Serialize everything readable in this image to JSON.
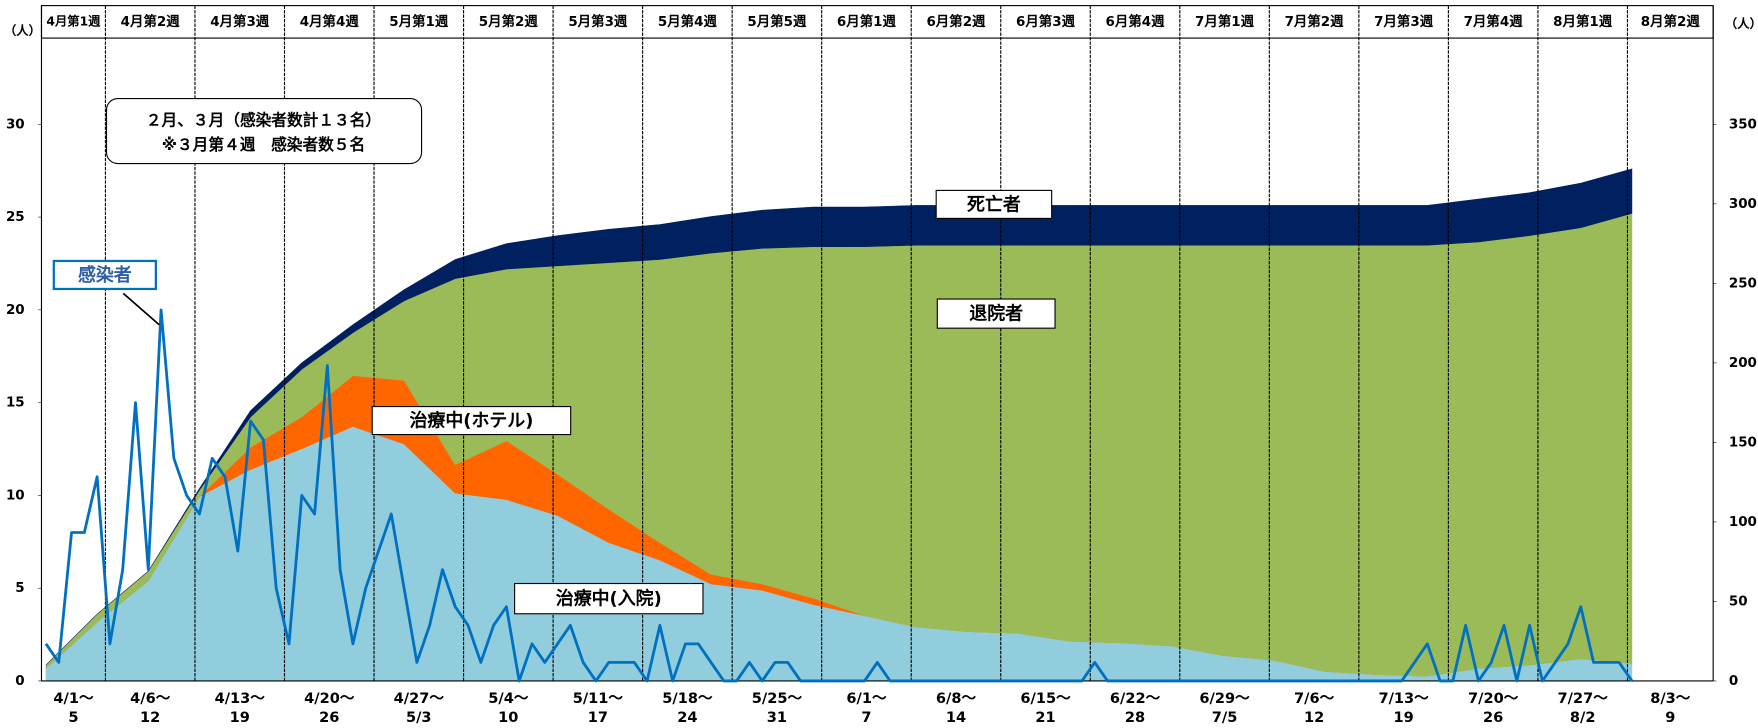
{
  "chart_data": {
    "type": "combo",
    "categories": [
      "4月第1週",
      "4月第2週",
      "4月第3週",
      "4月第4週",
      "5月第1週",
      "5月第2週",
      "5月第3週",
      "5月第4週",
      "5月第5週",
      "6月第1週",
      "6月第2週",
      "6月第3週",
      "6月第4週",
      "7月第1週",
      "7月第2週",
      "7月第3週",
      "7月第4週",
      "8月第1週",
      "8月第2週"
    ],
    "date_ranges": [
      [
        "4/1〜",
        "5"
      ],
      [
        "4/6〜",
        "12"
      ],
      [
        "4/13〜",
        "19"
      ],
      [
        "4/20〜",
        "26"
      ],
      [
        "4/27〜",
        "5/3"
      ],
      [
        "5/4〜",
        "10"
      ],
      [
        "5/11〜",
        "17"
      ],
      [
        "5/18〜",
        "24"
      ],
      [
        "5/25〜",
        "31"
      ],
      [
        "6/1〜",
        "7"
      ],
      [
        "6/8〜",
        "14"
      ],
      [
        "6/15〜",
        "21"
      ],
      [
        "6/22〜",
        "28"
      ],
      [
        "6/29〜",
        "7/5"
      ],
      [
        "7/6〜",
        "12"
      ],
      [
        "7/13〜",
        "19"
      ],
      [
        "7/20〜",
        "26"
      ],
      [
        "7/27〜",
        "8/2"
      ],
      [
        "8/3〜",
        "9"
      ]
    ],
    "xlim": [
      -0.35,
      130.35
    ],
    "ylim": [
      0,
      30
    ],
    "yticks": [
      0,
      5,
      10,
      15,
      20,
      25,
      30
    ],
    "y_unit": "（人）",
    "y2lim": [
      0,
      350
    ],
    "y2ticks": [
      0,
      50,
      100,
      150,
      200,
      250,
      300,
      350
    ],
    "y2_unit": "（人）",
    "annotations": [
      "２月、３月（感染者数計１３名）",
      "※３月第４週　感染者数５名"
    ],
    "series": [
      {
        "name": "治療中(入院)",
        "type": "area",
        "axis": "y2",
        "color": "#92cddd",
        "x": [
          0,
          4,
          8,
          12,
          16,
          20,
          24,
          28,
          32,
          36,
          40,
          44,
          48,
          52,
          56,
          60,
          64,
          68,
          72,
          76,
          80,
          84,
          88,
          92,
          96,
          100,
          104,
          108,
          112,
          116,
          120,
          124
        ],
        "values": [
          8,
          37,
          63,
          116,
          133,
          146,
          160,
          149,
          118,
          114,
          104,
          87,
          76,
          61,
          57,
          48,
          41,
          34,
          31,
          30,
          25,
          24,
          22,
          16,
          13,
          6,
          4,
          3,
          8,
          10,
          14,
          11
        ]
      },
      {
        "name": "治療中(ホテル)",
        "type": "area",
        "axis": "y2",
        "color": "#ff6600",
        "x": [
          0,
          4,
          8,
          12,
          16,
          20,
          24,
          28,
          32,
          36,
          40,
          44,
          48,
          52,
          56,
          60,
          64,
          68,
          72,
          76,
          80,
          84,
          88,
          92,
          96,
          100,
          104,
          108,
          112,
          116,
          120,
          124
        ],
        "values": [
          0,
          0,
          0,
          0,
          14,
          20,
          32,
          40,
          18,
          37,
          26,
          21,
          11,
          6,
          4,
          4,
          0,
          0,
          0,
          0,
          0,
          0,
          0,
          0,
          0,
          0,
          0,
          0,
          0,
          0,
          0,
          0
        ]
      },
      {
        "name": "退院者",
        "type": "area",
        "axis": "y2",
        "color": "#9bbb59",
        "x": [
          0,
          4,
          8,
          12,
          16,
          20,
          24,
          28,
          32,
          36,
          40,
          44,
          48,
          52,
          56,
          60,
          64,
          68,
          72,
          76,
          80,
          84,
          88,
          92,
          96,
          100,
          104,
          108,
          112,
          116,
          120,
          124
        ],
        "values": [
          2,
          5,
          6,
          4,
          19,
          30,
          27,
          50,
          117,
          108,
          131,
          155,
          178,
          202,
          211,
          221,
          232,
          240,
          243,
          244,
          249,
          250,
          252,
          258,
          261,
          268,
          270,
          271,
          268,
          270,
          271,
          283
        ]
      },
      {
        "name": "死亡者",
        "type": "area",
        "axis": "y2",
        "color": "#002060",
        "x": [
          0,
          4,
          8,
          12,
          16,
          20,
          24,
          28,
          32,
          36,
          40,
          44,
          48,
          52,
          56,
          60,
          64,
          68,
          72,
          76,
          80,
          84,
          88,
          92,
          96,
          100,
          104,
          108,
          112,
          116,
          120,
          124
        ],
        "values": [
          0,
          0,
          0,
          1,
          4,
          4,
          5,
          7,
          12,
          16,
          19,
          21,
          22,
          23,
          24,
          25,
          25,
          25,
          25,
          25,
          25,
          25,
          25,
          25,
          25,
          25,
          25,
          25,
          27,
          27,
          28,
          28
        ]
      },
      {
        "name": "感染者",
        "type": "line",
        "axis": "y",
        "color": "#0070c0",
        "x": [
          0,
          1,
          2,
          3,
          4,
          5,
          6,
          7,
          8,
          9,
          10,
          11,
          12,
          13,
          14,
          15,
          16,
          17,
          18,
          19,
          20,
          21,
          22,
          23,
          24,
          25,
          26,
          27,
          28,
          29,
          30,
          31,
          32,
          33,
          34,
          35,
          36,
          37,
          38,
          39,
          40,
          41,
          42,
          43,
          44,
          45,
          46,
          47,
          48,
          49,
          50,
          51,
          52,
          53,
          54,
          55,
          56,
          57,
          58,
          59,
          60,
          61,
          62,
          63,
          64,
          65,
          66,
          67,
          68,
          69,
          70,
          71,
          72,
          73,
          74,
          75,
          76,
          77,
          78,
          79,
          80,
          81,
          82,
          83,
          84,
          85,
          86,
          87,
          88,
          89,
          90,
          91,
          92,
          93,
          94,
          95,
          96,
          97,
          98,
          99,
          100,
          101,
          102,
          103,
          104,
          105,
          106,
          107,
          108,
          109,
          110,
          111,
          112,
          113,
          114,
          115,
          116,
          117,
          118,
          119,
          120,
          121,
          122,
          123,
          124
        ],
        "values": [
          2,
          1,
          8,
          8,
          11,
          2,
          6,
          15,
          6,
          20,
          12,
          10,
          9,
          12,
          11,
          7,
          14,
          13,
          5,
          2,
          10,
          9,
          17,
          6,
          2,
          5,
          7,
          9,
          5,
          1,
          3,
          6,
          4,
          3,
          1,
          3,
          4,
          0,
          2,
          1,
          2,
          3,
          1,
          0,
          1,
          1,
          1,
          0,
          3,
          0,
          2,
          2,
          1,
          0,
          0,
          1,
          0,
          1,
          1,
          0,
          0,
          0,
          0,
          0,
          0,
          1,
          0,
          0,
          0,
          0,
          0,
          0,
          0,
          0,
          0,
          0,
          0,
          0,
          0,
          0,
          0,
          0,
          1,
          0,
          0,
          0,
          0,
          0,
          0,
          0,
          0,
          0,
          0,
          0,
          0,
          0,
          0,
          0,
          0,
          0,
          0,
          0,
          0,
          0,
          0,
          0,
          0,
          1,
          2,
          0,
          0,
          3,
          0,
          1,
          3,
          0,
          3,
          0,
          1,
          2,
          4,
          1,
          1,
          1,
          0
        ]
      }
    ]
  }
}
